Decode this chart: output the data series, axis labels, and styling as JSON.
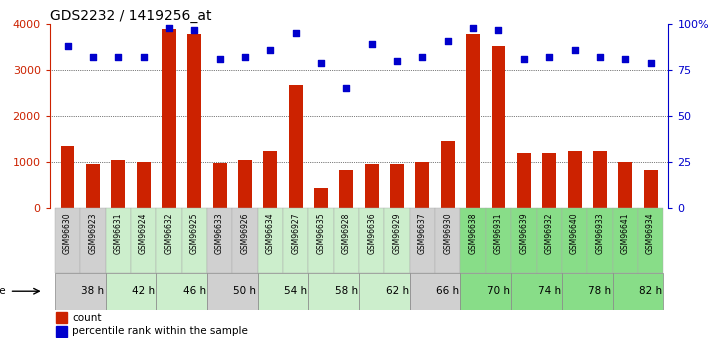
{
  "title": "GDS2232 / 1419256_at",
  "samples": [
    "GSM96630",
    "GSM96923",
    "GSM96631",
    "GSM96924",
    "GSM96632",
    "GSM96925",
    "GSM96633",
    "GSM96926",
    "GSM96634",
    "GSM96927",
    "GSM96635",
    "GSM96928",
    "GSM96636",
    "GSM96929",
    "GSM96637",
    "GSM96930",
    "GSM96638",
    "GSM96931",
    "GSM96639",
    "GSM96932",
    "GSM96640",
    "GSM96933",
    "GSM96641",
    "GSM96934"
  ],
  "counts": [
    1350,
    960,
    1030,
    1000,
    3900,
    3780,
    970,
    1040,
    1230,
    2680,
    430,
    820,
    960,
    960,
    1000,
    1450,
    3780,
    3520,
    1200,
    1200,
    1230,
    1230,
    1000,
    820
  ],
  "percentiles": [
    88,
    82,
    82,
    82,
    98,
    97,
    81,
    82,
    86,
    95,
    79,
    65,
    89,
    80,
    82,
    91,
    98,
    97,
    81,
    82,
    86,
    82,
    81,
    79
  ],
  "time_groups": [
    {
      "label": "38 h",
      "start": 0,
      "end": 2,
      "color": "#d0d0d0"
    },
    {
      "label": "42 h",
      "start": 2,
      "end": 4,
      "color": "#cceecc"
    },
    {
      "label": "46 h",
      "start": 4,
      "end": 6,
      "color": "#cceecc"
    },
    {
      "label": "50 h",
      "start": 6,
      "end": 8,
      "color": "#d0d0d0"
    },
    {
      "label": "54 h",
      "start": 8,
      "end": 10,
      "color": "#cceecc"
    },
    {
      "label": "58 h",
      "start": 10,
      "end": 12,
      "color": "#cceecc"
    },
    {
      "label": "62 h",
      "start": 12,
      "end": 14,
      "color": "#cceecc"
    },
    {
      "label": "66 h",
      "start": 14,
      "end": 16,
      "color": "#d0d0d0"
    },
    {
      "label": "70 h",
      "start": 16,
      "end": 18,
      "color": "#88dd88"
    },
    {
      "label": "74 h",
      "start": 18,
      "end": 20,
      "color": "#88dd88"
    },
    {
      "label": "78 h",
      "start": 20,
      "end": 22,
      "color": "#88dd88"
    },
    {
      "label": "82 h",
      "start": 22,
      "end": 24,
      "color": "#88dd88"
    }
  ],
  "sample_group_colors": [
    "#d0d0d0",
    "#d0d0d0",
    "#cceecc",
    "#cceecc",
    "#cceecc",
    "#cceecc",
    "#d0d0d0",
    "#d0d0d0",
    "#cceecc",
    "#cceecc",
    "#cceecc",
    "#cceecc",
    "#cceecc",
    "#cceecc",
    "#d0d0d0",
    "#d0d0d0",
    "#88dd88",
    "#88dd88",
    "#88dd88",
    "#88dd88",
    "#88dd88",
    "#88dd88",
    "#88dd88",
    "#88dd88"
  ],
  "bar_color": "#cc2200",
  "dot_color": "#0000cc",
  "ylim_left": [
    0,
    4000
  ],
  "ylim_right": [
    0,
    100
  ],
  "yticks_left": [
    0,
    1000,
    2000,
    3000,
    4000
  ],
  "yticks_right": [
    0,
    25,
    50,
    75,
    100
  ],
  "bg_color": "#ffffff",
  "title_fontsize": 10,
  "tick_fontsize": 8,
  "sample_label_fontsize": 5.5
}
